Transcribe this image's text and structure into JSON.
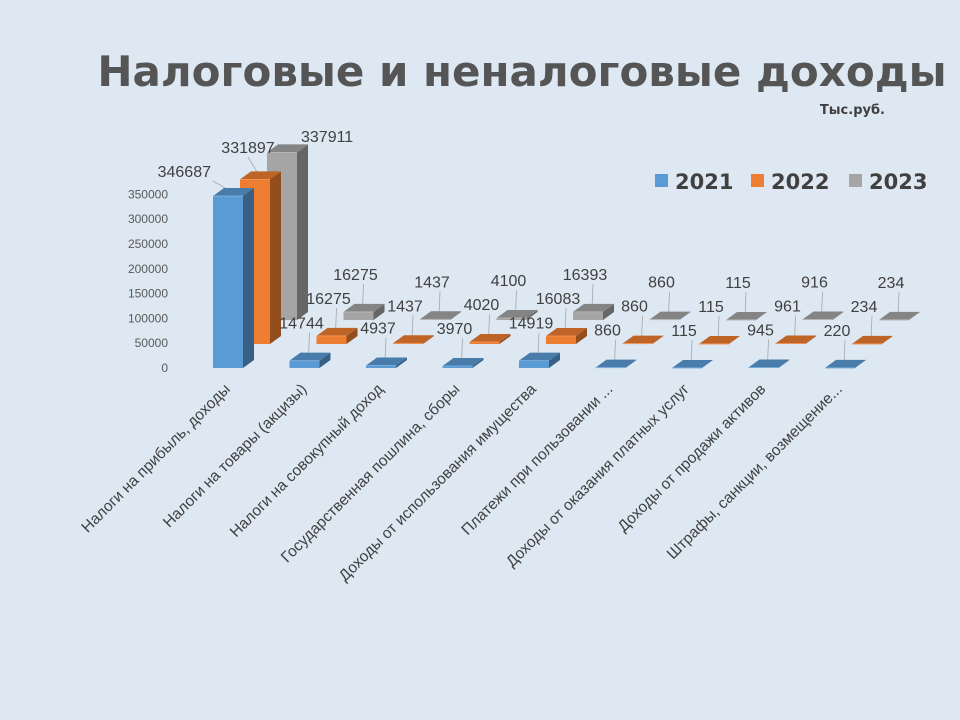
{
  "chart_data": {
    "type": "bar",
    "title": "Налоговые и неналоговые доходы",
    "subtitle": "Тыс.руб.",
    "categories": [
      "Налоги на прибыль, доходы",
      "Налоги на товары (акцизы)",
      "Налоги на совокупный доход",
      "Государственная  пошлина, сборы",
      "Доходы от использования имущества",
      "Платежи при  пользовании ...",
      "Доходы от оказания платных услуг",
      "Доходы от продажи активов",
      "Штрафы, санкции, возмещение..."
    ],
    "series": [
      {
        "name": "2021",
        "color": "#5b9bd5",
        "values": [
          346687,
          14744,
          4937,
          3970,
          14919,
          860,
          115,
          945,
          220
        ]
      },
      {
        "name": "2022",
        "color": "#ed7d31",
        "values": [
          331897,
          16275,
          1437,
          4020,
          16083,
          860,
          115,
          961,
          234
        ]
      },
      {
        "name": "2023",
        "color": "#a5a5a5",
        "values": [
          337911,
          16275,
          1437,
          4100,
          16393,
          860,
          115,
          916,
          234
        ]
      }
    ],
    "ylim": [
      0,
      350000
    ],
    "yticks": [
      "0",
      "50000",
      "100000",
      "150000",
      "200000",
      "250000",
      "300000",
      "350000"
    ],
    "legend_position": "top-right",
    "grid": false,
    "style": "3d-column"
  }
}
